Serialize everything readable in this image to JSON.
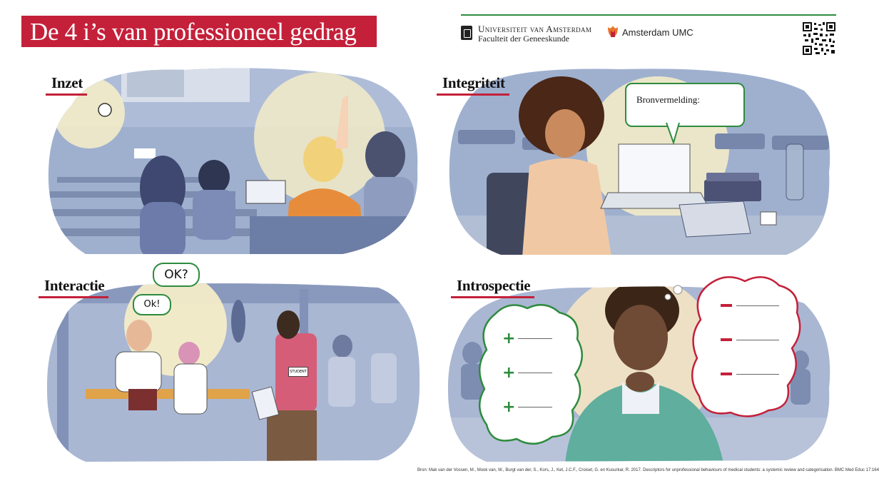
{
  "title": "De 4 i’s van professioneel gedrag",
  "logos": {
    "uva_name": "Universiteit van Amsterdam",
    "uva_faculty": "Faculteit der Geneeskunde",
    "amc_name": "Amsterdam UMC"
  },
  "sections": {
    "inzet": "Inzet",
    "integriteit": "Integriteit",
    "interactie": "Interactie",
    "introspectie": "Introspectie"
  },
  "bubbles": {
    "bronvermelding": "Bronvermelding:",
    "ok_question": "OK?",
    "ok_exclaim": "Ok!",
    "badge": "STUDENT"
  },
  "source_note": "Bron: Mak van der Vossen, M., Mook van, W., Burgt van der, S., Kors, J., Ket, J.C.F., Croiset, G. en Kusurkar, R. 2017. Descriptors for unprofessional behaviours of medical students: a systemic review and categorisation. BMC Med Educ 17:164",
  "colors": {
    "accent_red": "#c4203a",
    "accent_green": "#2e8b3e",
    "scene_blue": "#9fb0cf"
  }
}
